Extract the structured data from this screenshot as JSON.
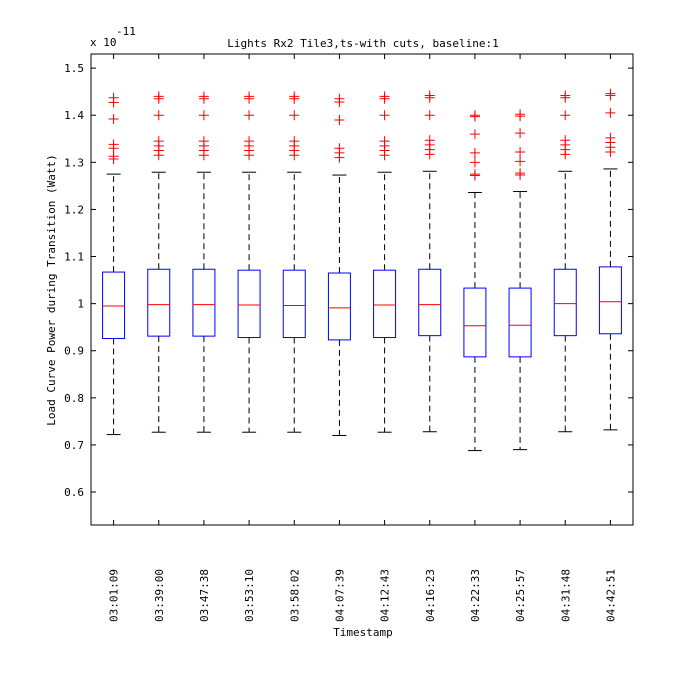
{
  "chart_data": {
    "type": "box",
    "title": "Lights Rx2 Tile3,ts-with cuts, baseline:1",
    "xlabel": "Timestamp",
    "ylabel": "Load Curve Power during Transition (Watt)",
    "y_exponent_label": "x 10",
    "y_exponent": "-11",
    "ylim": [
      0.53,
      1.53
    ],
    "yticks": [
      0.6,
      0.7,
      0.8,
      0.9,
      1,
      1.1,
      1.2,
      1.3,
      1.4,
      1.5
    ],
    "ytick_labels": [
      "0.6",
      "0.7",
      "0.8",
      "0.9",
      "1",
      "1.1",
      "1.2",
      "1.3",
      "1.4",
      "1.5"
    ],
    "categories": [
      "03:01:09",
      "03:39:00",
      "03:47:38",
      "03:53:10",
      "03:58:02",
      "04:07:39",
      "04:12:43",
      "04:16:23",
      "04:22:33",
      "04:25:57",
      "04:31:48",
      "04:42:51"
    ],
    "boxes": [
      {
        "whisker_low": 0.722,
        "q1": 0.926,
        "median": 0.995,
        "q3": 1.067,
        "whisker_high": 1.275,
        "outliers": [
          1.307,
          1.313,
          1.33,
          1.338,
          1.392,
          1.427,
          1.437
        ]
      },
      {
        "whisker_low": 0.727,
        "q1": 0.931,
        "median": 0.998,
        "q3": 1.073,
        "whisker_high": 1.279,
        "outliers": [
          1.315,
          1.325,
          1.335,
          1.345,
          1.4,
          1.435,
          1.44
        ]
      },
      {
        "whisker_low": 0.727,
        "q1": 0.931,
        "median": 0.998,
        "q3": 1.073,
        "whisker_high": 1.279,
        "outliers": [
          1.315,
          1.325,
          1.335,
          1.345,
          1.4,
          1.435,
          1.44
        ]
      },
      {
        "whisker_low": 0.727,
        "q1": 0.928,
        "median": 0.997,
        "q3": 1.071,
        "whisker_high": 1.279,
        "outliers": [
          1.315,
          1.325,
          1.335,
          1.345,
          1.4,
          1.435,
          1.44
        ]
      },
      {
        "whisker_low": 0.727,
        "q1": 0.928,
        "median": 0.996,
        "q3": 1.071,
        "whisker_high": 1.279,
        "outliers": [
          1.315,
          1.325,
          1.335,
          1.345,
          1.4,
          1.435,
          1.44
        ]
      },
      {
        "whisker_low": 0.72,
        "q1": 0.923,
        "median": 0.991,
        "q3": 1.065,
        "whisker_high": 1.273,
        "outliers": [
          1.31,
          1.32,
          1.33,
          1.39,
          1.428,
          1.435
        ]
      },
      {
        "whisker_low": 0.727,
        "q1": 0.928,
        "median": 0.997,
        "q3": 1.071,
        "whisker_high": 1.279,
        "outliers": [
          1.315,
          1.325,
          1.335,
          1.345,
          1.4,
          1.435,
          1.44
        ]
      },
      {
        "whisker_low": 0.728,
        "q1": 0.932,
        "median": 0.998,
        "q3": 1.073,
        "whisker_high": 1.281,
        "outliers": [
          1.317,
          1.327,
          1.337,
          1.347,
          1.4,
          1.437,
          1.442
        ]
      },
      {
        "whisker_low": 0.688,
        "q1": 0.887,
        "median": 0.953,
        "q3": 1.033,
        "whisker_high": 1.236,
        "outliers": [
          1.272,
          1.275,
          1.3,
          1.32,
          1.36,
          1.397,
          1.4
        ]
      },
      {
        "whisker_low": 0.69,
        "q1": 0.887,
        "median": 0.954,
        "q3": 1.033,
        "whisker_high": 1.238,
        "outliers": [
          1.273,
          1.277,
          1.302,
          1.322,
          1.362,
          1.398,
          1.402
        ]
      },
      {
        "whisker_low": 0.728,
        "q1": 0.932,
        "median": 1.0,
        "q3": 1.073,
        "whisker_high": 1.281,
        "outliers": [
          1.317,
          1.327,
          1.337,
          1.347,
          1.4,
          1.437,
          1.442
        ]
      },
      {
        "whisker_low": 0.732,
        "q1": 0.936,
        "median": 1.004,
        "q3": 1.078,
        "whisker_high": 1.286,
        "outliers": [
          1.322,
          1.332,
          1.342,
          1.352,
          1.405,
          1.442,
          1.446
        ]
      }
    ],
    "colors": {
      "box": "#0000ff",
      "median": "#ff0000",
      "outlier": "#ff0000",
      "whisker": "#000000",
      "axes": "#000000"
    }
  }
}
